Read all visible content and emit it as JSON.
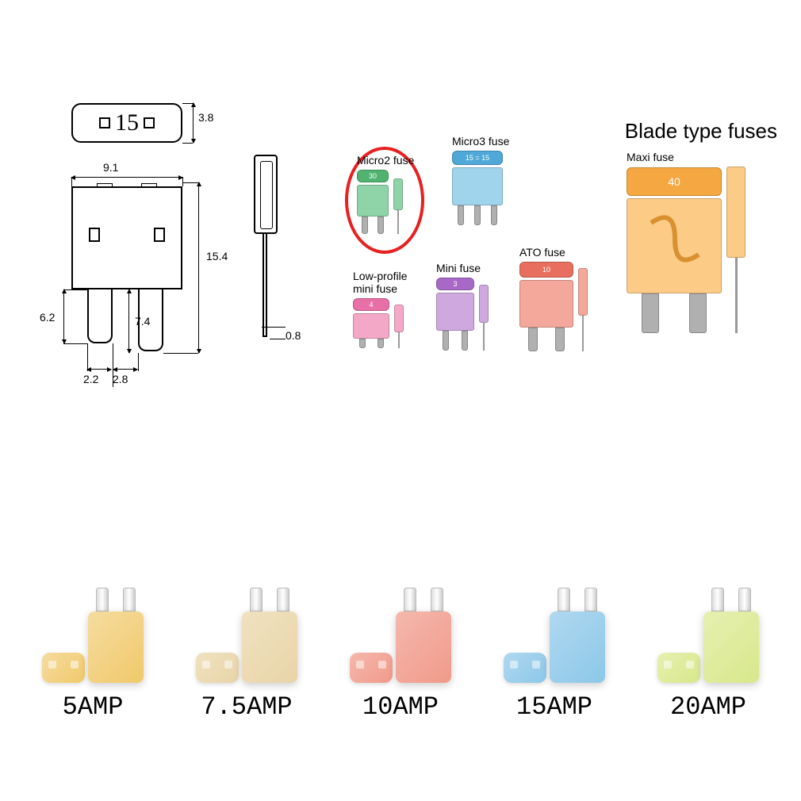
{
  "tech_drawing": {
    "top_number": "15",
    "dim_top_h": "3.8",
    "dim_width": "9.1",
    "dim_height": "15.4",
    "dim_left_prong": "6.2",
    "dim_right_prong": "7.4",
    "dim_gap1": "2.2",
    "dim_gap2": "2.8",
    "dim_side": "0.8"
  },
  "chart": {
    "title": "Blade type fuses",
    "types": {
      "micro2": {
        "label": "Micro2 fuse",
        "value": "30",
        "color": "#4fb36f",
        "circled": true
      },
      "micro3": {
        "label": "Micro3 fuse",
        "value": "15 = 15",
        "color": "#4fa8d8"
      },
      "lowprofile": {
        "label": "Low-profile mini fuse",
        "value": "4",
        "color": "#e86fa8"
      },
      "mini": {
        "label": "Mini fuse",
        "value": "3",
        "color": "#a868c8"
      },
      "ato": {
        "label": "ATO fuse",
        "value": "10",
        "color": "#e86f5f"
      },
      "maxi": {
        "label": "Maxi fuse",
        "value": "40",
        "color": "#f5a742"
      }
    }
  },
  "amps": [
    {
      "label": "5AMP",
      "color": "#f0c96a",
      "color_light": "#f5dca0"
    },
    {
      "label": "7.5AMP",
      "color": "#e8d4a8",
      "color_light": "#f0e2c0"
    },
    {
      "label": "10AMP",
      "color": "#f09a8a",
      "color_light": "#f5b8ad"
    },
    {
      "label": "15AMP",
      "color": "#8cc8e8",
      "color_light": "#b0d8f0"
    },
    {
      "label": "20AMP",
      "color": "#d8e88c",
      "color_light": "#e5f0b0"
    }
  ]
}
